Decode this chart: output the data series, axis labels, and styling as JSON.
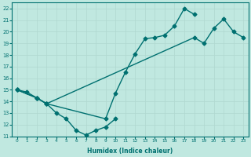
{
  "bg_color": "#c0e8e0",
  "line_color": "#007070",
  "line1_x": [
    0,
    1,
    2,
    3,
    4,
    5,
    6,
    7,
    8,
    9,
    10
  ],
  "line1_y": [
    15,
    14.8,
    14.3,
    13.8,
    13.0,
    12.5,
    11.5,
    11.1,
    11.5,
    11.8,
    12.5
  ],
  "line2_x": [
    0,
    2,
    3,
    9,
    10,
    11,
    12,
    13,
    14,
    15,
    16,
    17,
    18
  ],
  "line2_y": [
    15,
    14.3,
    13.8,
    12.5,
    14.7,
    16.5,
    18.1,
    19.4,
    19.5,
    19.7,
    20.5,
    22.0,
    21.5
  ],
  "line3_x": [
    0,
    2,
    3,
    18,
    19,
    20,
    21,
    22,
    23
  ],
  "line3_y": [
    15,
    14.3,
    13.8,
    19.5,
    19.0,
    20.3,
    21.1,
    20.0,
    19.5
  ],
  "xlim": [
    0,
    23
  ],
  "ylim": [
    11,
    22.5
  ],
  "yticks": [
    11,
    12,
    13,
    14,
    15,
    16,
    17,
    18,
    19,
    20,
    21,
    22
  ],
  "xticks": [
    0,
    1,
    2,
    3,
    4,
    5,
    6,
    7,
    8,
    9,
    10,
    11,
    12,
    13,
    14,
    15,
    16,
    17,
    18,
    19,
    20,
    21,
    22,
    23
  ],
  "xlabel": "Humidex (Indice chaleur)",
  "marker": "D",
  "markersize": 2.5,
  "linewidth": 1.0
}
